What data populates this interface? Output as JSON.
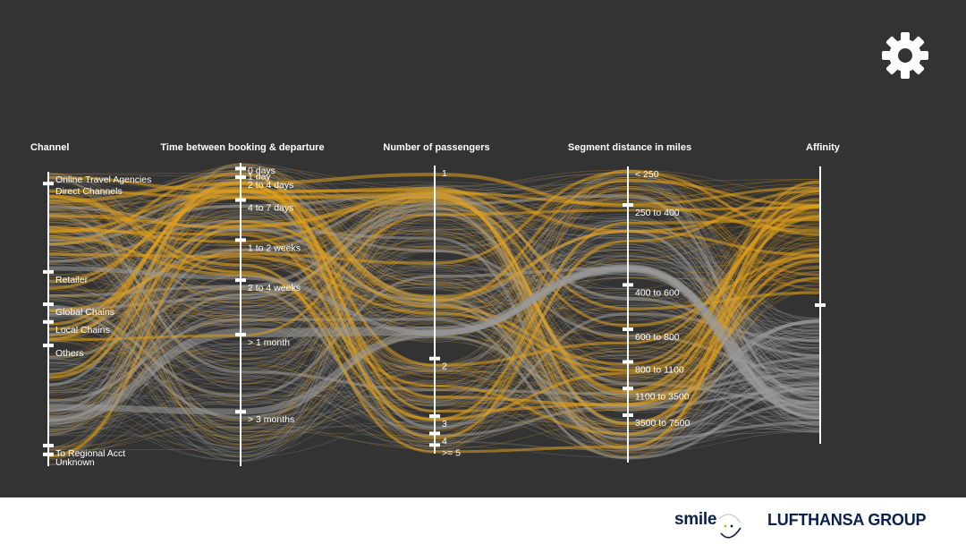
{
  "settings_icon": "gear-icon",
  "colors": {
    "background": "#333333",
    "highlight": "#e0a01e",
    "base": "#9a9a9a",
    "axis": "#ffffff",
    "brand": "#0b1f4b"
  },
  "chart_data": {
    "type": "parallel-sets",
    "axes": [
      {
        "name": "Channel",
        "categories": [
          {
            "label": "Online Travel Agencies",
            "share": 0.04
          },
          {
            "label": "Direct Channels",
            "share": 0.3
          },
          {
            "label": "Retailer",
            "share": 0.11
          },
          {
            "label": "Global Chains",
            "share": 0.06
          },
          {
            "label": "Local Chains",
            "share": 0.08
          },
          {
            "label": "Others",
            "share": 0.34
          },
          {
            "label": "To Regional Acct",
            "share": 0.03
          },
          {
            "label": "Unknown",
            "share": 0.04
          }
        ]
      },
      {
        "name": "Time between booking & departure",
        "categories": [
          {
            "label": "0 days",
            "share": 0.02
          },
          {
            "label": "1 day",
            "share": 0.03
          },
          {
            "label": "2 to 4 days",
            "share": 0.08
          },
          {
            "label": "4 to 7 days",
            "share": 0.14
          },
          {
            "label": "1 to 2 weeks",
            "share": 0.14
          },
          {
            "label": "2 to 4 weeks",
            "share": 0.19
          },
          {
            "label": "> 1 month",
            "share": 0.27
          },
          {
            "label": "> 3 months",
            "share": 0.19
          }
        ]
      },
      {
        "name": "Number of passengers",
        "categories": [
          {
            "label": "1",
            "share": 0.67
          },
          {
            "label": "2",
            "share": 0.2
          },
          {
            "label": "3",
            "share": 0.06
          },
          {
            "label": "4",
            "share": 0.04
          },
          {
            "label": ">= 5",
            "share": 0.03
          }
        ]
      },
      {
        "name": "Segment distance in miles",
        "categories": [
          {
            "label": "< 250",
            "share": 0.13
          },
          {
            "label": "250 to 400",
            "share": 0.27
          },
          {
            "label": "400 to 600",
            "share": 0.15
          },
          {
            "label": "600 to 800",
            "share": 0.11
          },
          {
            "label": "800 to 1100",
            "share": 0.09
          },
          {
            "label": "1100 to 3500",
            "share": 0.09
          },
          {
            "label": "3500 to 7500",
            "share": 0.16
          }
        ]
      },
      {
        "name": "Affinity",
        "categories": [
          {
            "label": "",
            "share": 0.5
          },
          {
            "label": "",
            "share": 0.5
          }
        ]
      }
    ]
  },
  "footer": {
    "smile_label": "smile",
    "group_label": "LUFTHANSA GROUP"
  }
}
